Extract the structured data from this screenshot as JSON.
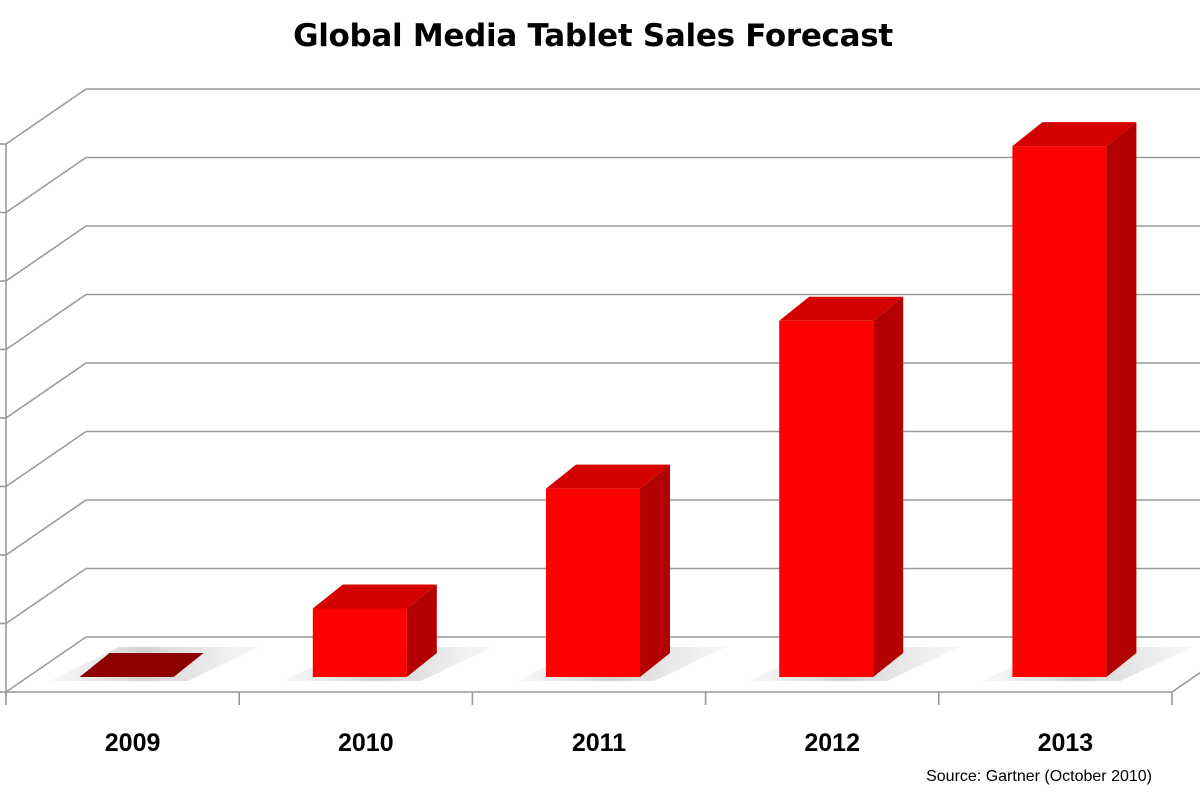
{
  "chart_data": {
    "type": "bar",
    "title": "Global Media Tablet Sales Forecast",
    "categories": [
      "2009",
      "2010",
      "2011",
      "2012",
      "2013"
    ],
    "values": [
      0,
      1,
      2.75,
      5.2,
      7.75
    ],
    "xlabel": "",
    "ylabel": "",
    "ylim": [
      0,
      8
    ],
    "grid": true,
    "three_d": true,
    "colors": {
      "bar_front": "#ff0000",
      "bar_top": "#d40000",
      "bar_side": "#b30000",
      "bar_zero": "#8c0000",
      "grid": "#9a9a9a",
      "floor_shadow": "#d2d2d2"
    }
  },
  "source": "Source: Gartner (October 2010)"
}
